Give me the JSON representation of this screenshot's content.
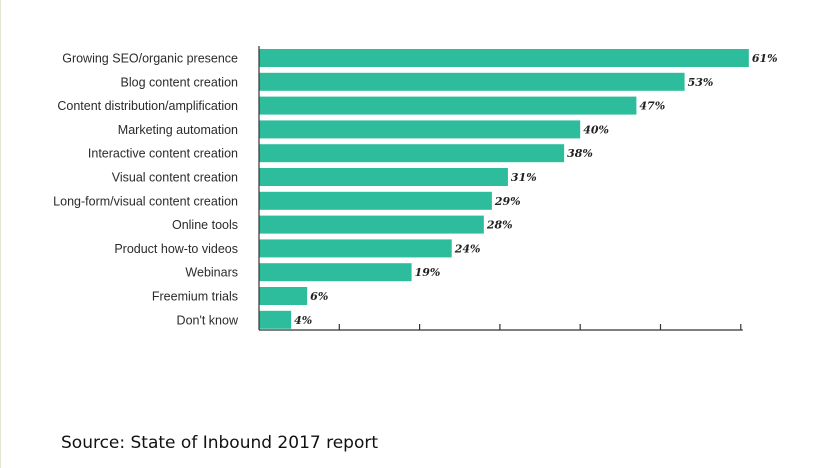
{
  "colors": {
    "bar": "#2ebd9c",
    "axis": "#333333"
  },
  "chart_data": {
    "type": "bar",
    "orientation": "horizontal",
    "categories": [
      "Growing SEO/organic presence",
      "Blog content creation",
      "Content distribution/amplification",
      "Marketing automation",
      "Interactive content creation",
      "Visual content creation",
      "Long-form/visual content creation",
      "Online tools",
      "Product how-to videos",
      "Webinars",
      "Freemium trials",
      "Don't know"
    ],
    "values": [
      61,
      53,
      47,
      40,
      38,
      31,
      29,
      28,
      24,
      19,
      6,
      4
    ],
    "value_labels": [
      "61%",
      "53%",
      "47%",
      "40%",
      "38%",
      "31%",
      "29%",
      "28%",
      "24%",
      "19%",
      "6%",
      "4%"
    ],
    "xlim": [
      0,
      60
    ],
    "x_ticks": 6,
    "grid": false,
    "title": "",
    "xlabel": "",
    "ylabel": ""
  },
  "source": "Source: State of Inbound 2017 report"
}
